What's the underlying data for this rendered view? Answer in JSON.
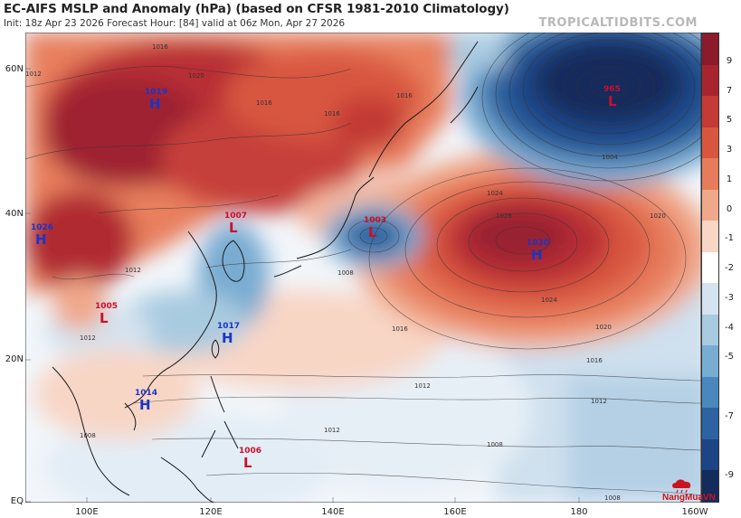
{
  "header": {
    "title": "EC-AIFS MSLP and Anomaly (hPa) (based on CFSR 1981-2010 Climatology)",
    "subtitle": "Init: 18z Apr 23 2026   Forecast Hour: [84]   valid at 06z Mon, Apr 27 2026",
    "brand": "TROPICALTIDBITS.COM"
  },
  "axes": {
    "lat_labels": [
      "60N",
      "40N",
      "20N",
      "EQ"
    ],
    "lon_labels": [
      "100E",
      "120E",
      "140E",
      "160E",
      "180",
      "160W"
    ]
  },
  "colorbar": {
    "labels": [
      "9",
      "7",
      "5",
      "3",
      "1",
      "0",
      "-1",
      "-2",
      "-3",
      "-4",
      "-5",
      "-7",
      "-9"
    ],
    "colors": [
      "#8b1a2b",
      "#a8252f",
      "#c33a36",
      "#d8563f",
      "#e67c5b",
      "#f0a88a",
      "#f8d6c6",
      "#ffffff",
      "#d4e3ef",
      "#a9cbe0",
      "#79acd1",
      "#4a87bd",
      "#2d63a0",
      "#1d4585",
      "#142c5c"
    ]
  },
  "pressure_centers": [
    {
      "type": "H",
      "value": "1019"
    },
    {
      "type": "H",
      "value": "1026"
    },
    {
      "type": "L",
      "value": "1007"
    },
    {
      "type": "L",
      "value": "1003"
    },
    {
      "type": "L",
      "value": "965"
    },
    {
      "type": "H",
      "value": "1030"
    },
    {
      "type": "L",
      "value": "1005"
    },
    {
      "type": "H",
      "value": "1017"
    },
    {
      "type": "H",
      "value": "1014"
    },
    {
      "type": "L",
      "value": "1006"
    }
  ],
  "isobar_labels": [
    "1016",
    "1020",
    "1012",
    "1016",
    "1016",
    "1016",
    "1012",
    "1012",
    "1008",
    "1024",
    "1028",
    "1024",
    "1020",
    "1020",
    "1016",
    "1016",
    "1012",
    "1012",
    "1012",
    "1008",
    "1008",
    "1008",
    "1004"
  ],
  "logo": {
    "text": "NangMuaVN"
  }
}
